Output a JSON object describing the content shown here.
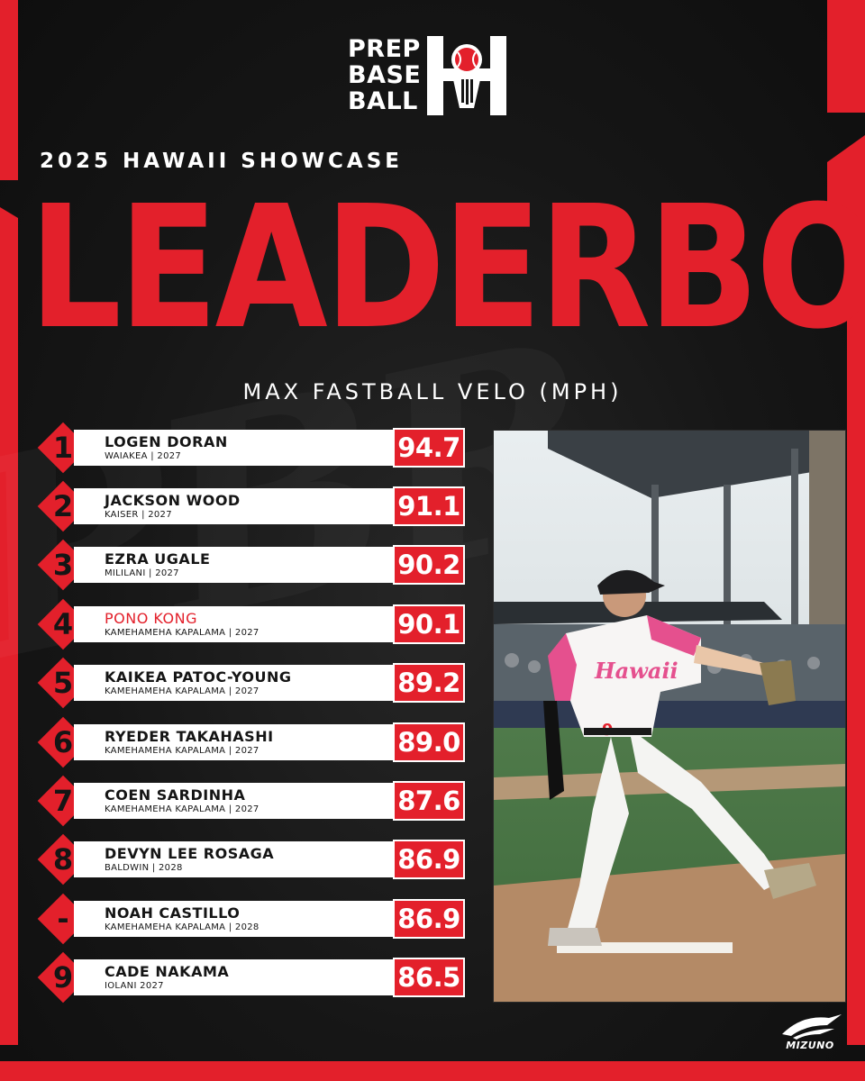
{
  "brand": {
    "logo_lines": [
      "PREP",
      "BASE",
      "BALL"
    ],
    "logo_mark": "HI"
  },
  "event": "2025 HAWAII SHOWCASE",
  "title": "LEADERBOARD",
  "metric": "MAX FASTBALL VELO (MPH)",
  "colors": {
    "accent": "#e3202b",
    "background": "#151515",
    "bar": "#ffffff"
  },
  "leaders": [
    {
      "rank": "1",
      "name": "LOGEN DORAN",
      "school": "WAIAKEA | 2027",
      "velo": "94.7",
      "highlight": false
    },
    {
      "rank": "2",
      "name": "JACKSON WOOD",
      "school": "KAISER | 2027",
      "velo": "91.1",
      "highlight": false
    },
    {
      "rank": "3",
      "name": "EZRA UGALE",
      "school": "MILILANI | 2027",
      "velo": "90.2",
      "highlight": false
    },
    {
      "rank": "4",
      "name": "PONO KONG",
      "school": "KAMEHAMEHA KAPALAMA | 2027",
      "velo": "90.1",
      "highlight": true
    },
    {
      "rank": "5",
      "name": "KAIKEA PATOC-YOUNG",
      "school": "KAMEHAMEHA KAPALAMA | 2027",
      "velo": "89.2",
      "highlight": false
    },
    {
      "rank": "6",
      "name": "RYEDER TAKAHASHI",
      "school": "KAMEHAMEHA KAPALAMA | 2027",
      "velo": "89.0",
      "highlight": false
    },
    {
      "rank": "7",
      "name": "COEN SARDINHA",
      "school": "KAMEHAMEHA KAPALAMA | 2027",
      "velo": "87.6",
      "highlight": false
    },
    {
      "rank": "8",
      "name": "DEVYN LEE ROSAGA",
      "school": "BALDWIN | 2028",
      "velo": "86.9",
      "highlight": false
    },
    {
      "rank": "-",
      "name": "NOAH CASTILLO",
      "school": "KAMEHAMEHA KAPALAMA | 2028",
      "velo": "86.9",
      "highlight": false
    },
    {
      "rank": "9",
      "name": "CADE NAKAMA",
      "school": "IOLANI 2027",
      "velo": "86.5",
      "highlight": false
    }
  ],
  "photo": {
    "jersey_text": "Hawaii",
    "jersey_number": "9"
  },
  "sponsor": {
    "name": "MIZUNO",
    "icon": "runbird-icon"
  }
}
